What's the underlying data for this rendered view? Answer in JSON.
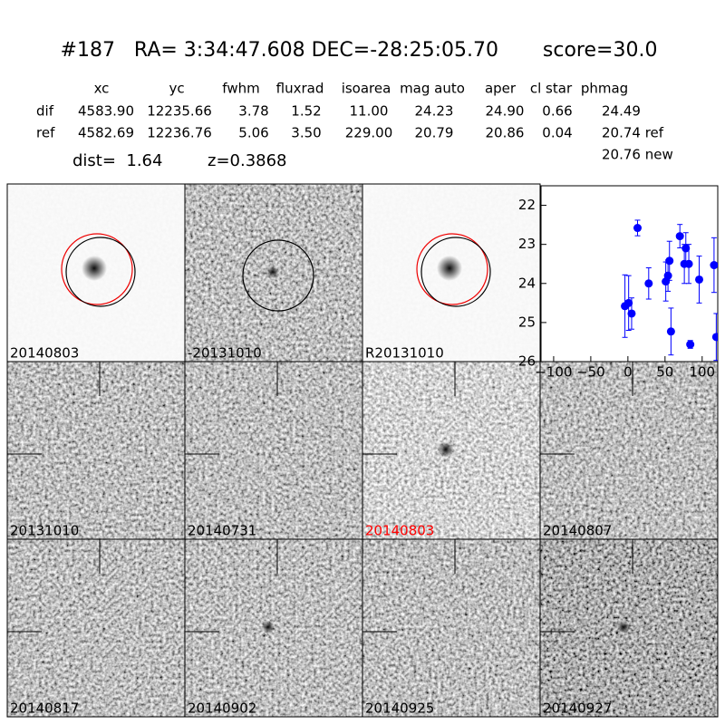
{
  "header": {
    "title": "#187   RA= 3:34:47.608 DEC=-28:25:05.70       score=30.0",
    "dist": "dist=  1.64",
    "z": "z=0.3868"
  },
  "table": {
    "columns": [
      "xc",
      "yc",
      "fwhm",
      "fluxrad",
      "isoarea",
      "mag auto",
      "aper",
      "cl star",
      "phmag"
    ],
    "rows": [
      [
        "dif",
        "4583.90",
        "12235.66",
        "3.78",
        "1.52",
        "11.00",
        "24.23",
        "24.90",
        "0.66",
        "24.49"
      ],
      [
        "ref",
        "4582.69",
        "12236.76",
        "5.06",
        "3.50",
        "229.00",
        "20.79",
        "20.86",
        "0.04",
        "20.74 ref"
      ]
    ],
    "extra": "20.76 new"
  },
  "stamps": [
    {
      "label": "20140803"
    },
    {
      "label": "-20131010"
    },
    {
      "label": "R20131010"
    },
    {
      "label": "20131010"
    },
    {
      "label": "20140731"
    },
    {
      "label": "20140803",
      "label_color": "#ff0000"
    },
    {
      "label": "20140807"
    },
    {
      "label": "20140817"
    },
    {
      "label": "20140902"
    },
    {
      "label": "20140925"
    },
    {
      "label": "20140927"
    }
  ],
  "chart_data": {
    "type": "scatter",
    "color": "#0000ff",
    "x": [
      -4,
      1,
      5,
      13,
      28,
      51,
      54,
      56,
      58,
      70,
      76,
      78,
      82,
      84,
      96,
      116,
      119
    ],
    "y": [
      24.58,
      24.5,
      24.77,
      22.58,
      24.0,
      23.95,
      23.8,
      23.42,
      25.23,
      22.79,
      23.5,
      23.1,
      23.5,
      25.56,
      23.9,
      23.53,
      25.37
    ],
    "err": [
      0.8,
      0.7,
      0.4,
      0.2,
      0.4,
      0.5,
      0.4,
      0.5,
      0.6,
      0.3,
      0.5,
      0.4,
      0.5,
      0.1,
      0.6,
      0.7,
      0.6
    ],
    "xlim": [
      -117,
      121
    ],
    "ylim": [
      26,
      21.5
    ],
    "xticks": [
      {
        "value": -100,
        "label": "−100"
      },
      {
        "value": -50,
        "label": "−50"
      },
      0,
      50,
      100
    ],
    "yticks": [
      22,
      23,
      24,
      25,
      26
    ]
  }
}
